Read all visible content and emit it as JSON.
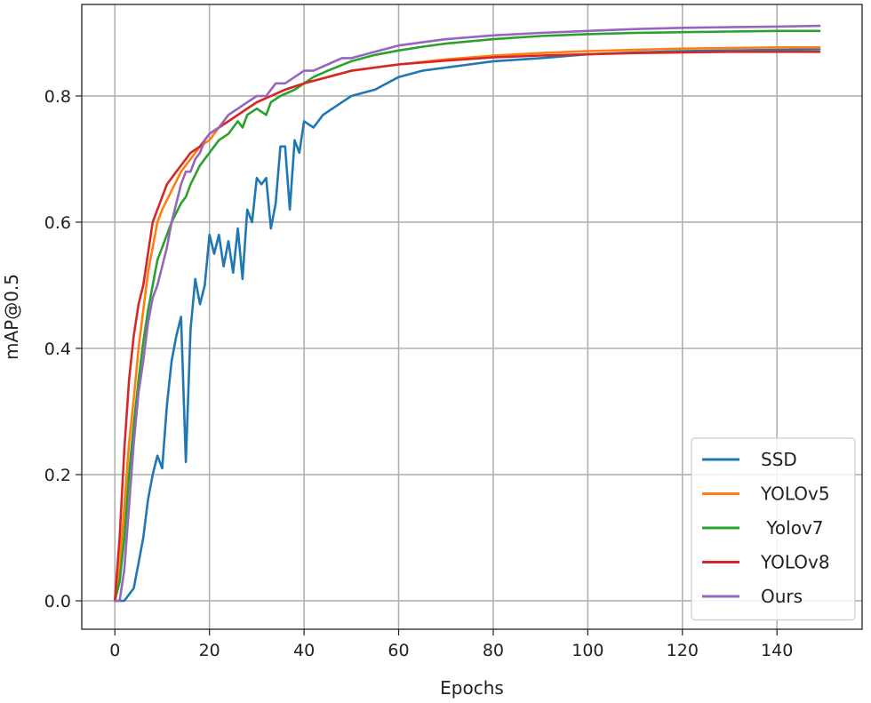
{
  "chart_data": {
    "type": "line",
    "title": "",
    "xlabel": "Epochs",
    "ylabel": "mAP@0.5",
    "xlim": [
      -7,
      158
    ],
    "ylim": [
      -0.045,
      0.945
    ],
    "xticks": [
      0,
      20,
      40,
      60,
      80,
      100,
      120,
      140
    ],
    "yticks": [
      0.0,
      0.2,
      0.4,
      0.6,
      0.8
    ],
    "xtick_labels": [
      "0",
      "20",
      "40",
      "60",
      "80",
      "100",
      "120",
      "140"
    ],
    "ytick_labels": [
      "0.0",
      "0.2",
      "0.4",
      "0.6",
      "0.8"
    ],
    "grid": true,
    "legend_position": "lower-right",
    "series": [
      {
        "name": "SSD",
        "color": "#1f77b4",
        "points": [
          [
            0,
            0.0
          ],
          [
            1,
            0.0
          ],
          [
            2,
            0.0
          ],
          [
            3,
            0.01
          ],
          [
            4,
            0.02
          ],
          [
            5,
            0.06
          ],
          [
            6,
            0.1
          ],
          [
            7,
            0.16
          ],
          [
            8,
            0.2
          ],
          [
            9,
            0.23
          ],
          [
            10,
            0.21
          ],
          [
            11,
            0.31
          ],
          [
            12,
            0.38
          ],
          [
            13,
            0.42
          ],
          [
            14,
            0.45
          ],
          [
            15,
            0.22
          ],
          [
            16,
            0.43
          ],
          [
            17,
            0.51
          ],
          [
            18,
            0.47
          ],
          [
            19,
            0.5
          ],
          [
            20,
            0.58
          ],
          [
            21,
            0.55
          ],
          [
            22,
            0.58
          ],
          [
            23,
            0.53
          ],
          [
            24,
            0.57
          ],
          [
            25,
            0.52
          ],
          [
            26,
            0.59
          ],
          [
            27,
            0.51
          ],
          [
            28,
            0.62
          ],
          [
            29,
            0.6
          ],
          [
            30,
            0.67
          ],
          [
            31,
            0.66
          ],
          [
            32,
            0.67
          ],
          [
            33,
            0.59
          ],
          [
            34,
            0.63
          ],
          [
            35,
            0.72
          ],
          [
            36,
            0.72
          ],
          [
            37,
            0.62
          ],
          [
            38,
            0.73
          ],
          [
            39,
            0.71
          ],
          [
            40,
            0.76
          ],
          [
            42,
            0.75
          ],
          [
            44,
            0.77
          ],
          [
            46,
            0.78
          ],
          [
            48,
            0.79
          ],
          [
            50,
            0.8
          ],
          [
            55,
            0.81
          ],
          [
            60,
            0.83
          ],
          [
            65,
            0.84
          ],
          [
            70,
            0.845
          ],
          [
            75,
            0.85
          ],
          [
            80,
            0.855
          ],
          [
            90,
            0.86
          ],
          [
            100,
            0.866
          ],
          [
            110,
            0.869
          ],
          [
            120,
            0.871
          ],
          [
            130,
            0.872
          ],
          [
            140,
            0.873
          ],
          [
            149,
            0.874
          ]
        ]
      },
      {
        "name": "YOLOv5",
        "color": "#ff7f0e",
        "points": [
          [
            0,
            0.0
          ],
          [
            1,
            0.05
          ],
          [
            2,
            0.15
          ],
          [
            3,
            0.25
          ],
          [
            4,
            0.32
          ],
          [
            5,
            0.4
          ],
          [
            6,
            0.46
          ],
          [
            7,
            0.52
          ],
          [
            8,
            0.56
          ],
          [
            9,
            0.6
          ],
          [
            10,
            0.62
          ],
          [
            12,
            0.65
          ],
          [
            14,
            0.68
          ],
          [
            16,
            0.7
          ],
          [
            18,
            0.72
          ],
          [
            20,
            0.73
          ],
          [
            22,
            0.75
          ],
          [
            24,
            0.76
          ],
          [
            26,
            0.77
          ],
          [
            28,
            0.78
          ],
          [
            30,
            0.79
          ],
          [
            33,
            0.8
          ],
          [
            36,
            0.81
          ],
          [
            40,
            0.82
          ],
          [
            45,
            0.83
          ],
          [
            50,
            0.84
          ],
          [
            55,
            0.845
          ],
          [
            60,
            0.85
          ],
          [
            70,
            0.858
          ],
          [
            80,
            0.864
          ],
          [
            90,
            0.868
          ],
          [
            100,
            0.871
          ],
          [
            110,
            0.873
          ],
          [
            120,
            0.875
          ],
          [
            130,
            0.876
          ],
          [
            140,
            0.877
          ],
          [
            149,
            0.877
          ]
        ]
      },
      {
        "name": " Yolov7",
        "color": "#2ca02c",
        "points": [
          [
            0,
            0.0
          ],
          [
            1,
            0.03
          ],
          [
            2,
            0.1
          ],
          [
            3,
            0.2
          ],
          [
            4,
            0.28
          ],
          [
            5,
            0.35
          ],
          [
            6,
            0.41
          ],
          [
            7,
            0.46
          ],
          [
            8,
            0.5
          ],
          [
            9,
            0.54
          ],
          [
            10,
            0.56
          ],
          [
            12,
            0.6
          ],
          [
            14,
            0.63
          ],
          [
            15,
            0.64
          ],
          [
            16,
            0.66
          ],
          [
            18,
            0.69
          ],
          [
            20,
            0.71
          ],
          [
            22,
            0.73
          ],
          [
            24,
            0.74
          ],
          [
            26,
            0.76
          ],
          [
            27,
            0.75
          ],
          [
            28,
            0.77
          ],
          [
            30,
            0.78
          ],
          [
            32,
            0.77
          ],
          [
            33,
            0.79
          ],
          [
            35,
            0.8
          ],
          [
            38,
            0.81
          ],
          [
            40,
            0.82
          ],
          [
            42,
            0.83
          ],
          [
            45,
            0.84
          ],
          [
            50,
            0.855
          ],
          [
            55,
            0.865
          ],
          [
            60,
            0.872
          ],
          [
            65,
            0.878
          ],
          [
            70,
            0.883
          ],
          [
            80,
            0.89
          ],
          [
            90,
            0.895
          ],
          [
            100,
            0.898
          ],
          [
            110,
            0.9
          ],
          [
            120,
            0.901
          ],
          [
            130,
            0.902
          ],
          [
            140,
            0.903
          ],
          [
            149,
            0.903
          ]
        ]
      },
      {
        "name": "YOLOv8",
        "color": "#d62728",
        "points": [
          [
            0,
            0.0
          ],
          [
            1,
            0.1
          ],
          [
            2,
            0.24
          ],
          [
            3,
            0.35
          ],
          [
            4,
            0.42
          ],
          [
            5,
            0.47
          ],
          [
            6,
            0.5
          ],
          [
            7,
            0.55
          ],
          [
            8,
            0.6
          ],
          [
            9,
            0.62
          ],
          [
            10,
            0.64
          ],
          [
            11,
            0.66
          ],
          [
            12,
            0.67
          ],
          [
            13,
            0.68
          ],
          [
            14,
            0.69
          ],
          [
            15,
            0.7
          ],
          [
            16,
            0.71
          ],
          [
            18,
            0.72
          ],
          [
            20,
            0.74
          ],
          [
            22,
            0.75
          ],
          [
            24,
            0.76
          ],
          [
            26,
            0.77
          ],
          [
            28,
            0.78
          ],
          [
            30,
            0.79
          ],
          [
            33,
            0.8
          ],
          [
            36,
            0.81
          ],
          [
            40,
            0.82
          ],
          [
            45,
            0.83
          ],
          [
            50,
            0.84
          ],
          [
            55,
            0.845
          ],
          [
            60,
            0.85
          ],
          [
            70,
            0.856
          ],
          [
            80,
            0.861
          ],
          [
            90,
            0.864
          ],
          [
            100,
            0.866
          ],
          [
            110,
            0.868
          ],
          [
            120,
            0.869
          ],
          [
            130,
            0.87
          ],
          [
            140,
            0.87
          ],
          [
            149,
            0.87
          ]
        ]
      },
      {
        "name": "Ours",
        "color": "#9467bd",
        "points": [
          [
            0,
            0.0
          ],
          [
            1,
            0.0
          ],
          [
            2,
            0.05
          ],
          [
            3,
            0.15
          ],
          [
            4,
            0.25
          ],
          [
            5,
            0.33
          ],
          [
            6,
            0.38
          ],
          [
            7,
            0.44
          ],
          [
            8,
            0.48
          ],
          [
            9,
            0.5
          ],
          [
            10,
            0.53
          ],
          [
            11,
            0.56
          ],
          [
            12,
            0.6
          ],
          [
            13,
            0.63
          ],
          [
            14,
            0.66
          ],
          [
            15,
            0.68
          ],
          [
            16,
            0.68
          ],
          [
            17,
            0.7
          ],
          [
            18,
            0.71
          ],
          [
            19,
            0.73
          ],
          [
            20,
            0.74
          ],
          [
            22,
            0.75
          ],
          [
            24,
            0.77
          ],
          [
            26,
            0.78
          ],
          [
            28,
            0.79
          ],
          [
            30,
            0.8
          ],
          [
            32,
            0.8
          ],
          [
            34,
            0.82
          ],
          [
            36,
            0.82
          ],
          [
            38,
            0.83
          ],
          [
            40,
            0.84
          ],
          [
            42,
            0.84
          ],
          [
            45,
            0.85
          ],
          [
            48,
            0.86
          ],
          [
            50,
            0.86
          ],
          [
            55,
            0.87
          ],
          [
            60,
            0.88
          ],
          [
            65,
            0.885
          ],
          [
            70,
            0.89
          ],
          [
            80,
            0.896
          ],
          [
            90,
            0.9
          ],
          [
            100,
            0.903
          ],
          [
            110,
            0.906
          ],
          [
            120,
            0.908
          ],
          [
            130,
            0.909
          ],
          [
            140,
            0.91
          ],
          [
            149,
            0.911
          ]
        ]
      }
    ]
  }
}
